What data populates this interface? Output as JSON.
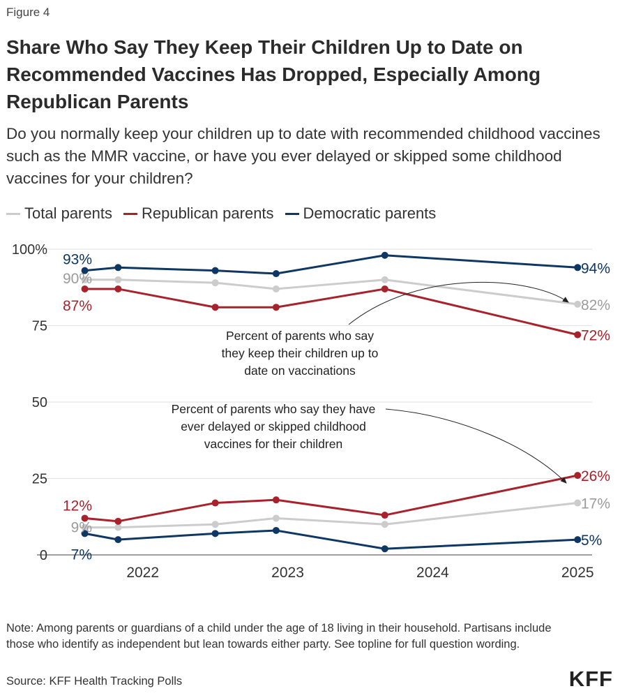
{
  "figure_label": "Figure 4",
  "title": "Share Who Say They Keep Their Children Up to Date on Recommended Vaccines Has Dropped, Especially Among Republican Parents",
  "subtitle": "Do you normally keep your children up to date with recommended childhood vaccines such as the MMR vaccine, or have you ever delayed or skipped some childhood vaccines for your children?",
  "legend": [
    {
      "label": "Total parents",
      "color": "#cccccc"
    },
    {
      "label": "Republican parents",
      "color": "#a8222c"
    },
    {
      "label": "Democratic parents",
      "color": "#0e3763"
    }
  ],
  "note": "Note: Among parents or guardians of a child under the age of 18 living in their household. Partisans include those who identify as independent but lean towards either party. See topline for full question wording.",
  "source": "Source: KFF Health Tracking Polls",
  "logo": "KFF",
  "chart_data": {
    "type": "line",
    "title": "Share Who Say They Keep Their Children Up to Date on Recommended Vaccines Has Dropped, Especially Among Republican Parents",
    "x_ticks": [
      2022,
      2023,
      2024,
      2025
    ],
    "x_range": [
      2021.4,
      2025.1
    ],
    "y_ticks": [
      "100%",
      "75",
      "50",
      "25",
      "0"
    ],
    "y_tick_values": [
      100,
      75,
      50,
      25,
      0
    ],
    "ylim": [
      0,
      100
    ],
    "grid": true,
    "annotations": [
      "Percent of parents who say they  keep their children up to date on vaccinations",
      "Percent of parents who say they have ever delayed or skipped childhood vaccines for their children"
    ],
    "series": [
      {
        "name": "Total parents",
        "group": "up to date",
        "color": "#cccccc",
        "x": [
          2021.6,
          2021.83,
          2022.5,
          2022.92,
          2023.67,
          2025.0
        ],
        "values": [
          90,
          90,
          89,
          87,
          90,
          82
        ],
        "start_label": "90%",
        "end_label": "82%"
      },
      {
        "name": "Republican parents",
        "group": "up to date",
        "color": "#a8222c",
        "x": [
          2021.6,
          2021.83,
          2022.5,
          2022.92,
          2023.67,
          2025.0
        ],
        "values": [
          87,
          87,
          81,
          81,
          87,
          72
        ],
        "start_label": "87%",
        "end_label": "72%"
      },
      {
        "name": "Democratic parents",
        "group": "up to date",
        "color": "#0e3763",
        "x": [
          2021.6,
          2021.83,
          2022.5,
          2022.92,
          2023.67,
          2025.0
        ],
        "values": [
          93,
          94,
          93,
          92,
          98,
          94
        ],
        "start_label": "93%",
        "end_label": "94%"
      },
      {
        "name": "Total parents",
        "group": "delayed or skipped",
        "color": "#cccccc",
        "x": [
          2021.6,
          2021.83,
          2022.5,
          2022.92,
          2023.67,
          2025.0
        ],
        "values": [
          9,
          9,
          10,
          12,
          10,
          17
        ],
        "start_label": "9%",
        "end_label": "17%"
      },
      {
        "name": "Republican parents",
        "group": "delayed or skipped",
        "color": "#a8222c",
        "x": [
          2021.6,
          2021.83,
          2022.5,
          2022.92,
          2023.67,
          2025.0
        ],
        "values": [
          12,
          11,
          17,
          18,
          13,
          26
        ],
        "start_label": "12%",
        "end_label": "26%"
      },
      {
        "name": "Democratic parents",
        "group": "delayed or skipped",
        "color": "#0e3763",
        "x": [
          2021.6,
          2021.83,
          2022.5,
          2022.92,
          2023.67,
          2025.0
        ],
        "values": [
          7,
          5,
          7,
          8,
          2,
          5
        ],
        "start_label": "7%",
        "end_label": "5%"
      }
    ]
  }
}
